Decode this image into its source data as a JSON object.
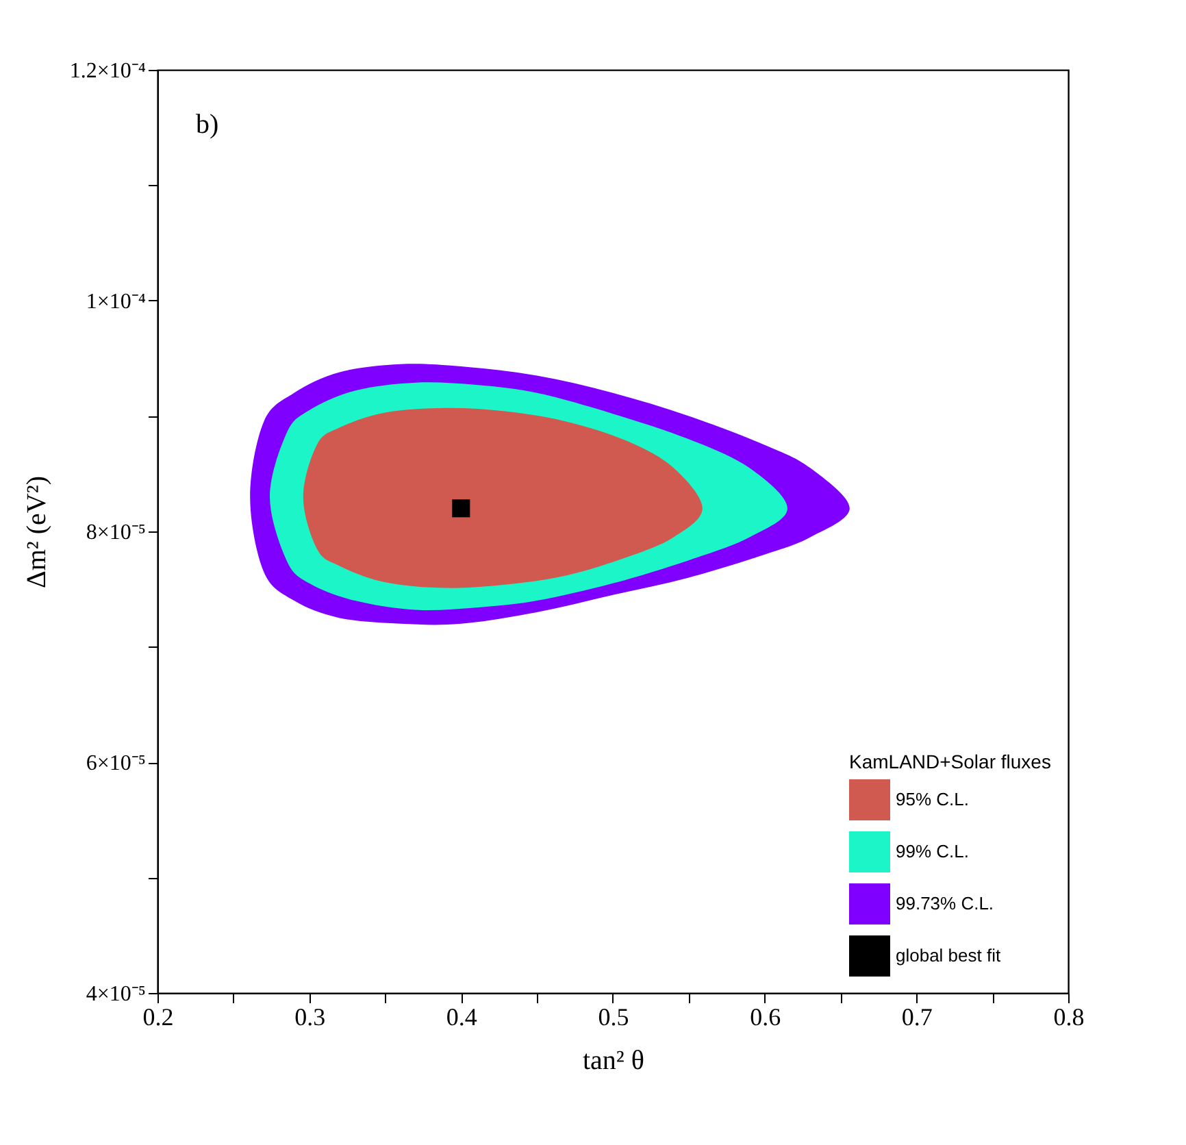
{
  "chart_data": {
    "type": "area",
    "xlabel": "tan² θ",
    "ylabel": "Δm² (eV²)",
    "legend_title": "KamLAND+Solar fluxes",
    "legend": "bottom right",
    "grid": false,
    "annotations": [
      "b)"
    ],
    "xlim": [
      0.2,
      0.8
    ],
    "xticks": [
      0.2,
      {
        "value": 0.25,
        "label": null
      },
      0.3,
      {
        "value": 0.35,
        "label": null
      },
      0.4,
      {
        "value": 0.45,
        "label": null
      },
      0.5,
      {
        "value": 0.55,
        "label": null
      },
      0.6,
      {
        "value": 0.65,
        "label": null
      },
      0.7,
      {
        "value": 0.75,
        "label": null
      },
      0.8
    ],
    "ylim": [
      4e-05,
      0.00012
    ],
    "yticks": [
      {
        "value": 4e-05,
        "label": "4×10⁻⁵"
      },
      {
        "value": 5e-05,
        "label": null
      },
      {
        "value": 6e-05,
        "label": "6×10⁻⁵"
      },
      {
        "value": 7e-05,
        "label": null
      },
      {
        "value": 8e-05,
        "label": "8×10⁻⁵"
      },
      {
        "value": 9e-05,
        "label": null
      },
      {
        "value": 0.0001,
        "label": "1×10⁻⁴"
      },
      {
        "value": 0.00011,
        "label": null
      },
      {
        "value": 0.00012,
        "label": "1.2×10⁻⁴"
      }
    ],
    "series": [
      {
        "name": "95% C.L.",
        "color": "#d05a50",
        "x": [
          0.296,
          0.305,
          0.32,
          0.35,
          0.39,
          0.43,
          0.47,
          0.51,
          0.54,
          0.559,
          0.54,
          0.51,
          0.47,
          0.43,
          0.39,
          0.35,
          0.32,
          0.305
        ],
        "values": [
          8.3e-05,
          8.75e-05,
          8.9e-05,
          9.03e-05,
          9.07e-05,
          9.04e-05,
          8.95e-05,
          8.78e-05,
          8.55e-05,
          8.2e-05,
          7.95e-05,
          7.78e-05,
          7.62e-05,
          7.54e-05,
          7.51e-05,
          7.56e-05,
          7.7e-05,
          7.85e-05
        ]
      },
      {
        "name": "99% C.L.",
        "color": "#1cf5c8",
        "x": [
          0.274,
          0.285,
          0.3,
          0.33,
          0.37,
          0.41,
          0.45,
          0.5,
          0.55,
          0.59,
          0.615,
          0.59,
          0.55,
          0.5,
          0.45,
          0.41,
          0.37,
          0.33,
          0.3,
          0.285
        ],
        "values": [
          8.3e-05,
          8.85e-05,
          9.05e-05,
          9.22e-05,
          9.29e-05,
          9.27e-05,
          9.2e-05,
          9.02e-05,
          8.8e-05,
          8.55e-05,
          8.2e-05,
          7.95e-05,
          7.75e-05,
          7.55e-05,
          7.4e-05,
          7.34e-05,
          7.32e-05,
          7.4e-05,
          7.55e-05,
          7.75e-05
        ]
      },
      {
        "name": "99.73% C.L.",
        "color": "#8000ff",
        "x": [
          0.261,
          0.27,
          0.29,
          0.32,
          0.36,
          0.4,
          0.45,
          0.5,
          0.55,
          0.6,
          0.63,
          0.656,
          0.63,
          0.6,
          0.55,
          0.5,
          0.45,
          0.4,
          0.36,
          0.32,
          0.29,
          0.27
        ],
        "values": [
          8.3e-05,
          8.95e-05,
          9.2e-05,
          9.38e-05,
          9.45e-05,
          9.43e-05,
          9.35e-05,
          9.2e-05,
          9e-05,
          8.75e-05,
          8.55e-05,
          8.2e-05,
          7.95e-05,
          7.8e-05,
          7.6e-05,
          7.45e-05,
          7.3e-05,
          7.2e-05,
          7.2e-05,
          7.25e-05,
          7.4e-05,
          7.65e-05
        ]
      },
      {
        "name": "global best fit",
        "type": "scatter",
        "marker": "square",
        "color": "#000000",
        "x": [
          0.4
        ],
        "values": [
          8.2e-05
        ]
      }
    ]
  }
}
